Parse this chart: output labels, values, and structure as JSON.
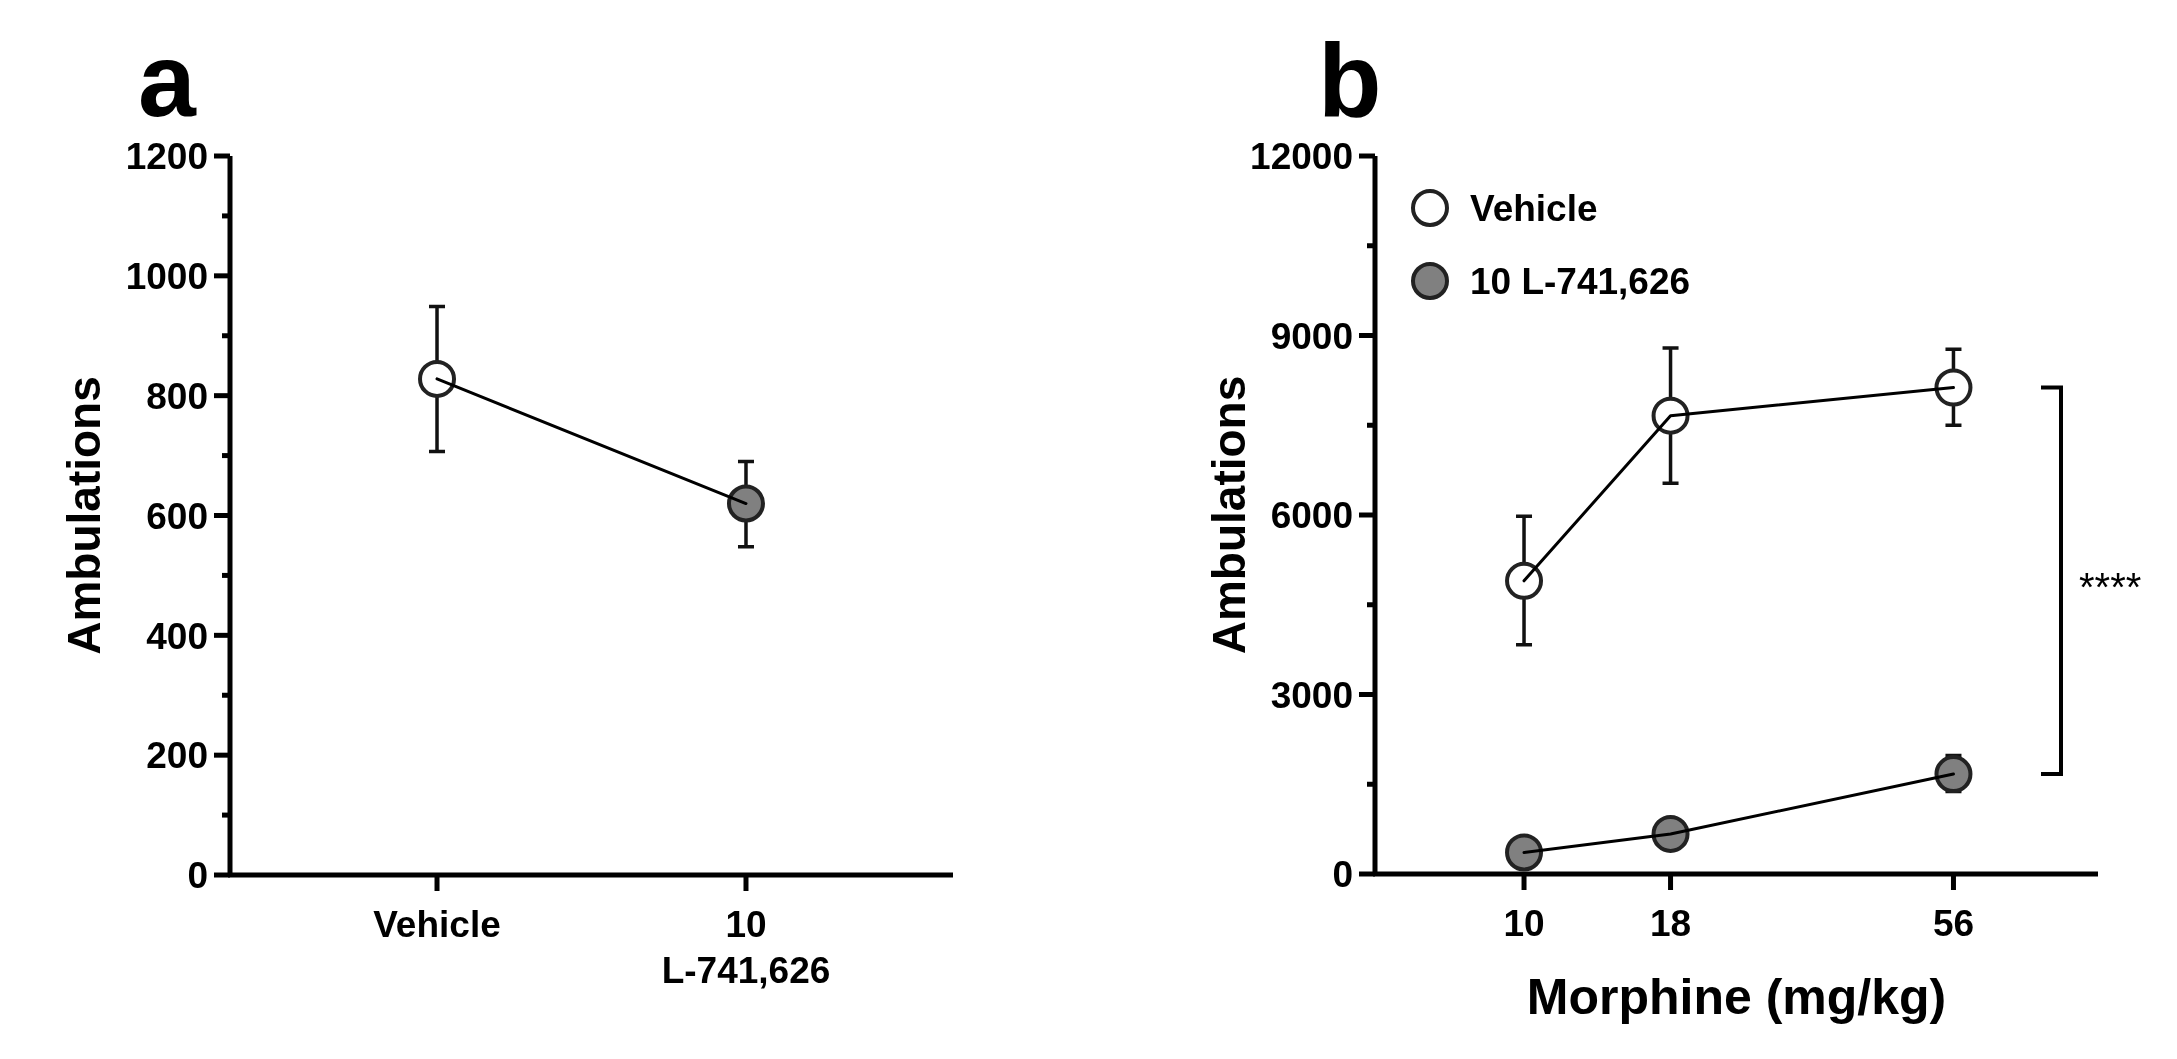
{
  "chart_data": [
    {
      "type": "line",
      "title": "a",
      "ylabel": "Ambulations",
      "categories": [
        "Vehicle",
        "10\nL-741,626"
      ],
      "ylim": [
        0,
        1200
      ],
      "yticks": [
        0,
        {
          "value": 100,
          "label": null
        },
        200,
        {
          "value": 300,
          "label": null
        },
        400,
        {
          "value": 500,
          "label": null
        },
        600,
        {
          "value": 700,
          "label": null
        },
        800,
        {
          "value": 900,
          "label": null
        },
        1000,
        {
          "value": 1100,
          "label": null
        },
        1200
      ],
      "marker": "circle",
      "legend": false,
      "series": [
        {
          "colors": [
            "#ffffff",
            "#808080"
          ],
          "color": "#000000",
          "values": [
            828,
            620
          ],
          "errors": [
            [
              707,
              949
            ],
            [
              548,
              690
            ]
          ]
        }
      ]
    },
    {
      "type": "line",
      "title": "b",
      "xlabel": "Morphine (mg/kg)",
      "ylabel": "Ambulations",
      "x": [
        10,
        18,
        56
      ],
      "log": "x",
      "xlim": [
        5.5,
        100
      ],
      "xticks": [
        10,
        18,
        56
      ],
      "ylim": [
        0,
        12000
      ],
      "yticks": [
        0,
        {
          "value": 1500,
          "label": null
        },
        3000,
        {
          "value": 4500,
          "label": null
        },
        6000,
        {
          "value": 7500,
          "label": null
        },
        9000,
        {
          "value": 10500,
          "label": null
        },
        12000
      ],
      "marker": "circle",
      "legend": "top left",
      "annotations": [
        "****"
      ],
      "series": [
        {
          "name": "Vehicle",
          "color": "#ffffff",
          "values": [
            4900,
            7660,
            8130
          ],
          "errors": [
            [
              3830,
              5980
            ],
            [
              6530,
              8790
            ],
            [
              7500,
              8770
            ]
          ]
        },
        {
          "name": "10 L-741,626",
          "color": "#808080",
          "values": [
            360,
            670,
            1670
          ],
          "errors": [
            null,
            null,
            [
              1380,
              1980
            ]
          ]
        }
      ]
    }
  ]
}
